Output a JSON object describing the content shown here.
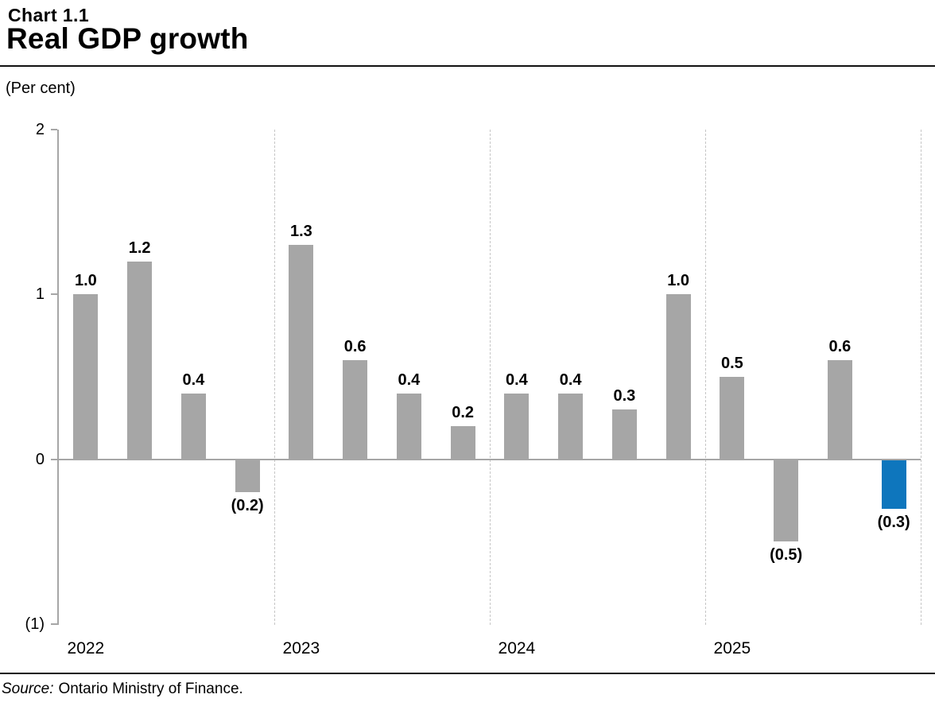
{
  "header": {
    "chart_number": "Chart 1.1",
    "title": "Real GDP growth"
  },
  "units_note": "(Per cent)",
  "source": {
    "label": "Source:",
    "text": "Ontario Ministry of Finance."
  },
  "colors": {
    "axis_line": "#a6a6a6",
    "dashed_line": "#c6c6c6",
    "rule": "#111111",
    "text": "#000000"
  },
  "chart_data": {
    "type": "bar",
    "title": "Real GDP growth",
    "ylabel": "(Per cent)",
    "ylim": [
      -1,
      2
    ],
    "yticks": [
      {
        "value": 2,
        "label": "2"
      },
      {
        "value": 1,
        "label": "1"
      },
      {
        "value": 0,
        "label": "0"
      },
      {
        "value": -1,
        "label": "(1)"
      }
    ],
    "bar_color": "#a6a6a6",
    "highlight_color": "#0e76bd",
    "highlight": {
      "group_index": 3,
      "bar_index": 3
    },
    "gridlines": "vertical-dashed-year-separators",
    "legend": "none",
    "groups": [
      {
        "year": "2022",
        "values": [
          1.0,
          1.2,
          0.4,
          -0.2
        ],
        "labels": [
          "1.0",
          "1.2",
          "0.4",
          "(0.2)"
        ]
      },
      {
        "year": "2023",
        "values": [
          1.3,
          0.6,
          0.4,
          0.2
        ],
        "labels": [
          "1.3",
          "0.6",
          "0.4",
          "0.2"
        ]
      },
      {
        "year": "2024",
        "values": [
          0.4,
          0.4,
          0.3,
          1.0
        ],
        "labels": [
          "0.4",
          "0.4",
          "0.3",
          "1.0"
        ]
      },
      {
        "year": "2025",
        "values": [
          0.5,
          -0.5,
          0.6,
          -0.3
        ],
        "labels": [
          "0.5",
          "(0.5)",
          "0.6",
          "(0.3)"
        ]
      }
    ]
  }
}
